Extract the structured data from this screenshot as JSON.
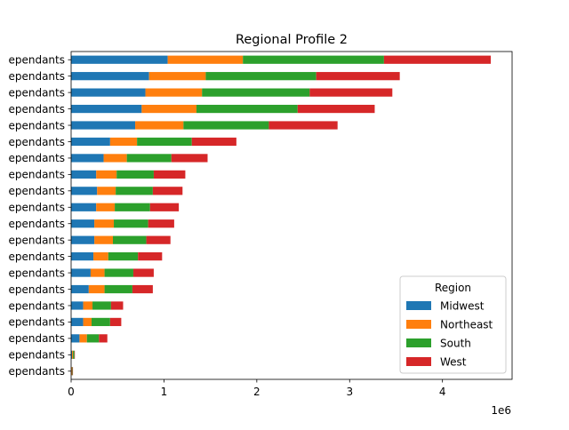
{
  "chart_data": {
    "type": "bar",
    "orientation": "horizontal",
    "stacked": true,
    "title": "Regional Profile 2",
    "xlabel": "",
    "ylabel": "",
    "x_offset_label": "1e6",
    "xlim": [
      0,
      4.75
    ],
    "xticks": [
      0,
      1,
      2,
      3,
      4
    ],
    "grid": false,
    "legend": {
      "title": "Region",
      "position": "lower-right"
    },
    "categories": [
      "ependants",
      "ependants",
      "ependants",
      "ependants",
      "ependants",
      "ependants",
      "ependants",
      "ependants",
      "ependants",
      "ependants",
      "ependants",
      "ependants",
      "ependants",
      "ependants",
      "ependants",
      "ependants",
      "ependants",
      "ependants",
      "ependants",
      "ependants"
    ],
    "series": [
      {
        "name": "Midwest",
        "color": "#1f77b4",
        "values": [
          1.04,
          0.84,
          0.8,
          0.76,
          0.69,
          0.42,
          0.35,
          0.27,
          0.28,
          0.27,
          0.25,
          0.25,
          0.24,
          0.21,
          0.19,
          0.13,
          0.13,
          0.09,
          0.01,
          0.005
        ]
      },
      {
        "name": "Northeast",
        "color": "#ff7f0e",
        "values": [
          0.81,
          0.61,
          0.61,
          0.59,
          0.52,
          0.29,
          0.25,
          0.22,
          0.2,
          0.2,
          0.21,
          0.2,
          0.16,
          0.15,
          0.17,
          0.1,
          0.09,
          0.08,
          0.01,
          0.005
        ]
      },
      {
        "name": "South",
        "color": "#2ca02c",
        "values": [
          1.52,
          1.19,
          1.16,
          1.09,
          0.92,
          0.59,
          0.48,
          0.4,
          0.4,
          0.38,
          0.37,
          0.36,
          0.32,
          0.31,
          0.3,
          0.2,
          0.2,
          0.13,
          0.015,
          0.005
        ]
      },
      {
        "name": "West",
        "color": "#d62728",
        "values": [
          1.15,
          0.9,
          0.89,
          0.83,
          0.74,
          0.48,
          0.39,
          0.34,
          0.32,
          0.31,
          0.28,
          0.26,
          0.26,
          0.22,
          0.22,
          0.13,
          0.12,
          0.09,
          0.005,
          0.005
        ]
      }
    ]
  }
}
